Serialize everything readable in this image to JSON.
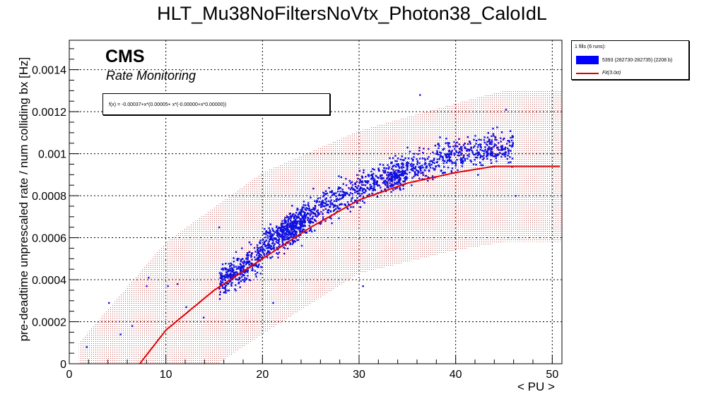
{
  "title": "HLT_Mu38NoFiltersNoVtx_Photon38_CaloIdL",
  "cms_label": "CMS",
  "rate_monitoring_label": "Rate Monitoring",
  "fit_formula": "f(x) = -0.00037+x*(0.00005+ x*(-0.00000+x*0.00000))",
  "legend": {
    "header": "1 fills (6 runs):",
    "entry_data": "5393 (282730-282735) (2208 b)",
    "entry_fit": "Fit(3.0σ)"
  },
  "colors": {
    "points": "#1010e0",
    "fit_line": "#e00000",
    "band_dots": "#c06060",
    "swatch": "#0000ff"
  },
  "chart_data": {
    "type": "scatter",
    "xlabel": "< PU >",
    "ylabel": "pre-deadtime unprescaled rate / num colliding bx [Hz]",
    "xlim": [
      0,
      51
    ],
    "ylim": [
      0,
      0.00154
    ],
    "x_ticks": [
      "0",
      "10",
      "20",
      "30",
      "40",
      "50"
    ],
    "y_ticks": [
      "0",
      "0.0002",
      "0.0004",
      "0.0006",
      "0.0008",
      "0.001",
      "0.0012",
      "0.0014"
    ],
    "grid": true,
    "series": [
      {
        "name": "5393 (282730-282735) (2208 b)",
        "points_sample": [
          [
            1.8,
            8e-05
          ],
          [
            4.1,
            0.00029
          ],
          [
            5.3,
            0.00014
          ],
          [
            6.5,
            0.00018
          ],
          [
            8.0,
            0.00037
          ],
          [
            8.2,
            0.00041
          ],
          [
            10.2,
            0.00037
          ],
          [
            11.2,
            0.00038
          ],
          [
            12.1,
            0.00027
          ],
          [
            13.9,
            0.00022
          ],
          [
            15.5,
            0.00065
          ],
          [
            16.2,
            0.00035
          ],
          [
            17.0,
            0.00041
          ],
          [
            18.3,
            0.00044
          ],
          [
            19.6,
            0.00047
          ],
          [
            21.0,
            0.00051
          ],
          [
            22.3,
            0.00055
          ],
          [
            23.7,
            0.00059
          ],
          [
            25.1,
            0.00063
          ],
          [
            26.5,
            0.00068
          ],
          [
            28.0,
            0.00074
          ],
          [
            29.3,
            0.00081
          ],
          [
            30.6,
            0.00087
          ],
          [
            32.0,
            0.00093
          ],
          [
            33.5,
            0.00098
          ],
          [
            35.0,
            0.00103
          ],
          [
            36.3,
            0.00128
          ],
          [
            38.5,
            0.00092
          ],
          [
            40.6,
            0.00096
          ],
          [
            42.3,
            0.0009
          ],
          [
            44.0,
            0.00094
          ],
          [
            45.2,
            0.00121
          ],
          [
            46.2,
            0.0008
          ],
          [
            30.4,
            0.00037
          ],
          [
            21.1,
            0.00029
          ]
        ]
      },
      {
        "name": "Fit(3.0σ)",
        "type": "line",
        "x": [
          7.3,
          10,
          15,
          20,
          25,
          30,
          35,
          40,
          44,
          51
        ],
        "y": [
          0.0,
          0.00016,
          0.00035,
          0.0005,
          0.00065,
          0.00078,
          0.00086,
          0.00091,
          0.00094,
          0.00094
        ]
      }
    ],
    "band": {
      "name": "3.0σ band",
      "upper_x": [
        1,
        10,
        20,
        30,
        40,
        45,
        51
      ],
      "upper_y": [
        0.0001,
        0.00058,
        0.00091,
        0.00111,
        0.00124,
        0.0013,
        0.0013
      ],
      "lower_x": [
        15.4,
        20,
        30,
        40,
        45,
        51
      ],
      "lower_y": [
        0.0,
        0.00014,
        0.00043,
        0.00054,
        0.00058,
        0.00058
      ]
    }
  }
}
